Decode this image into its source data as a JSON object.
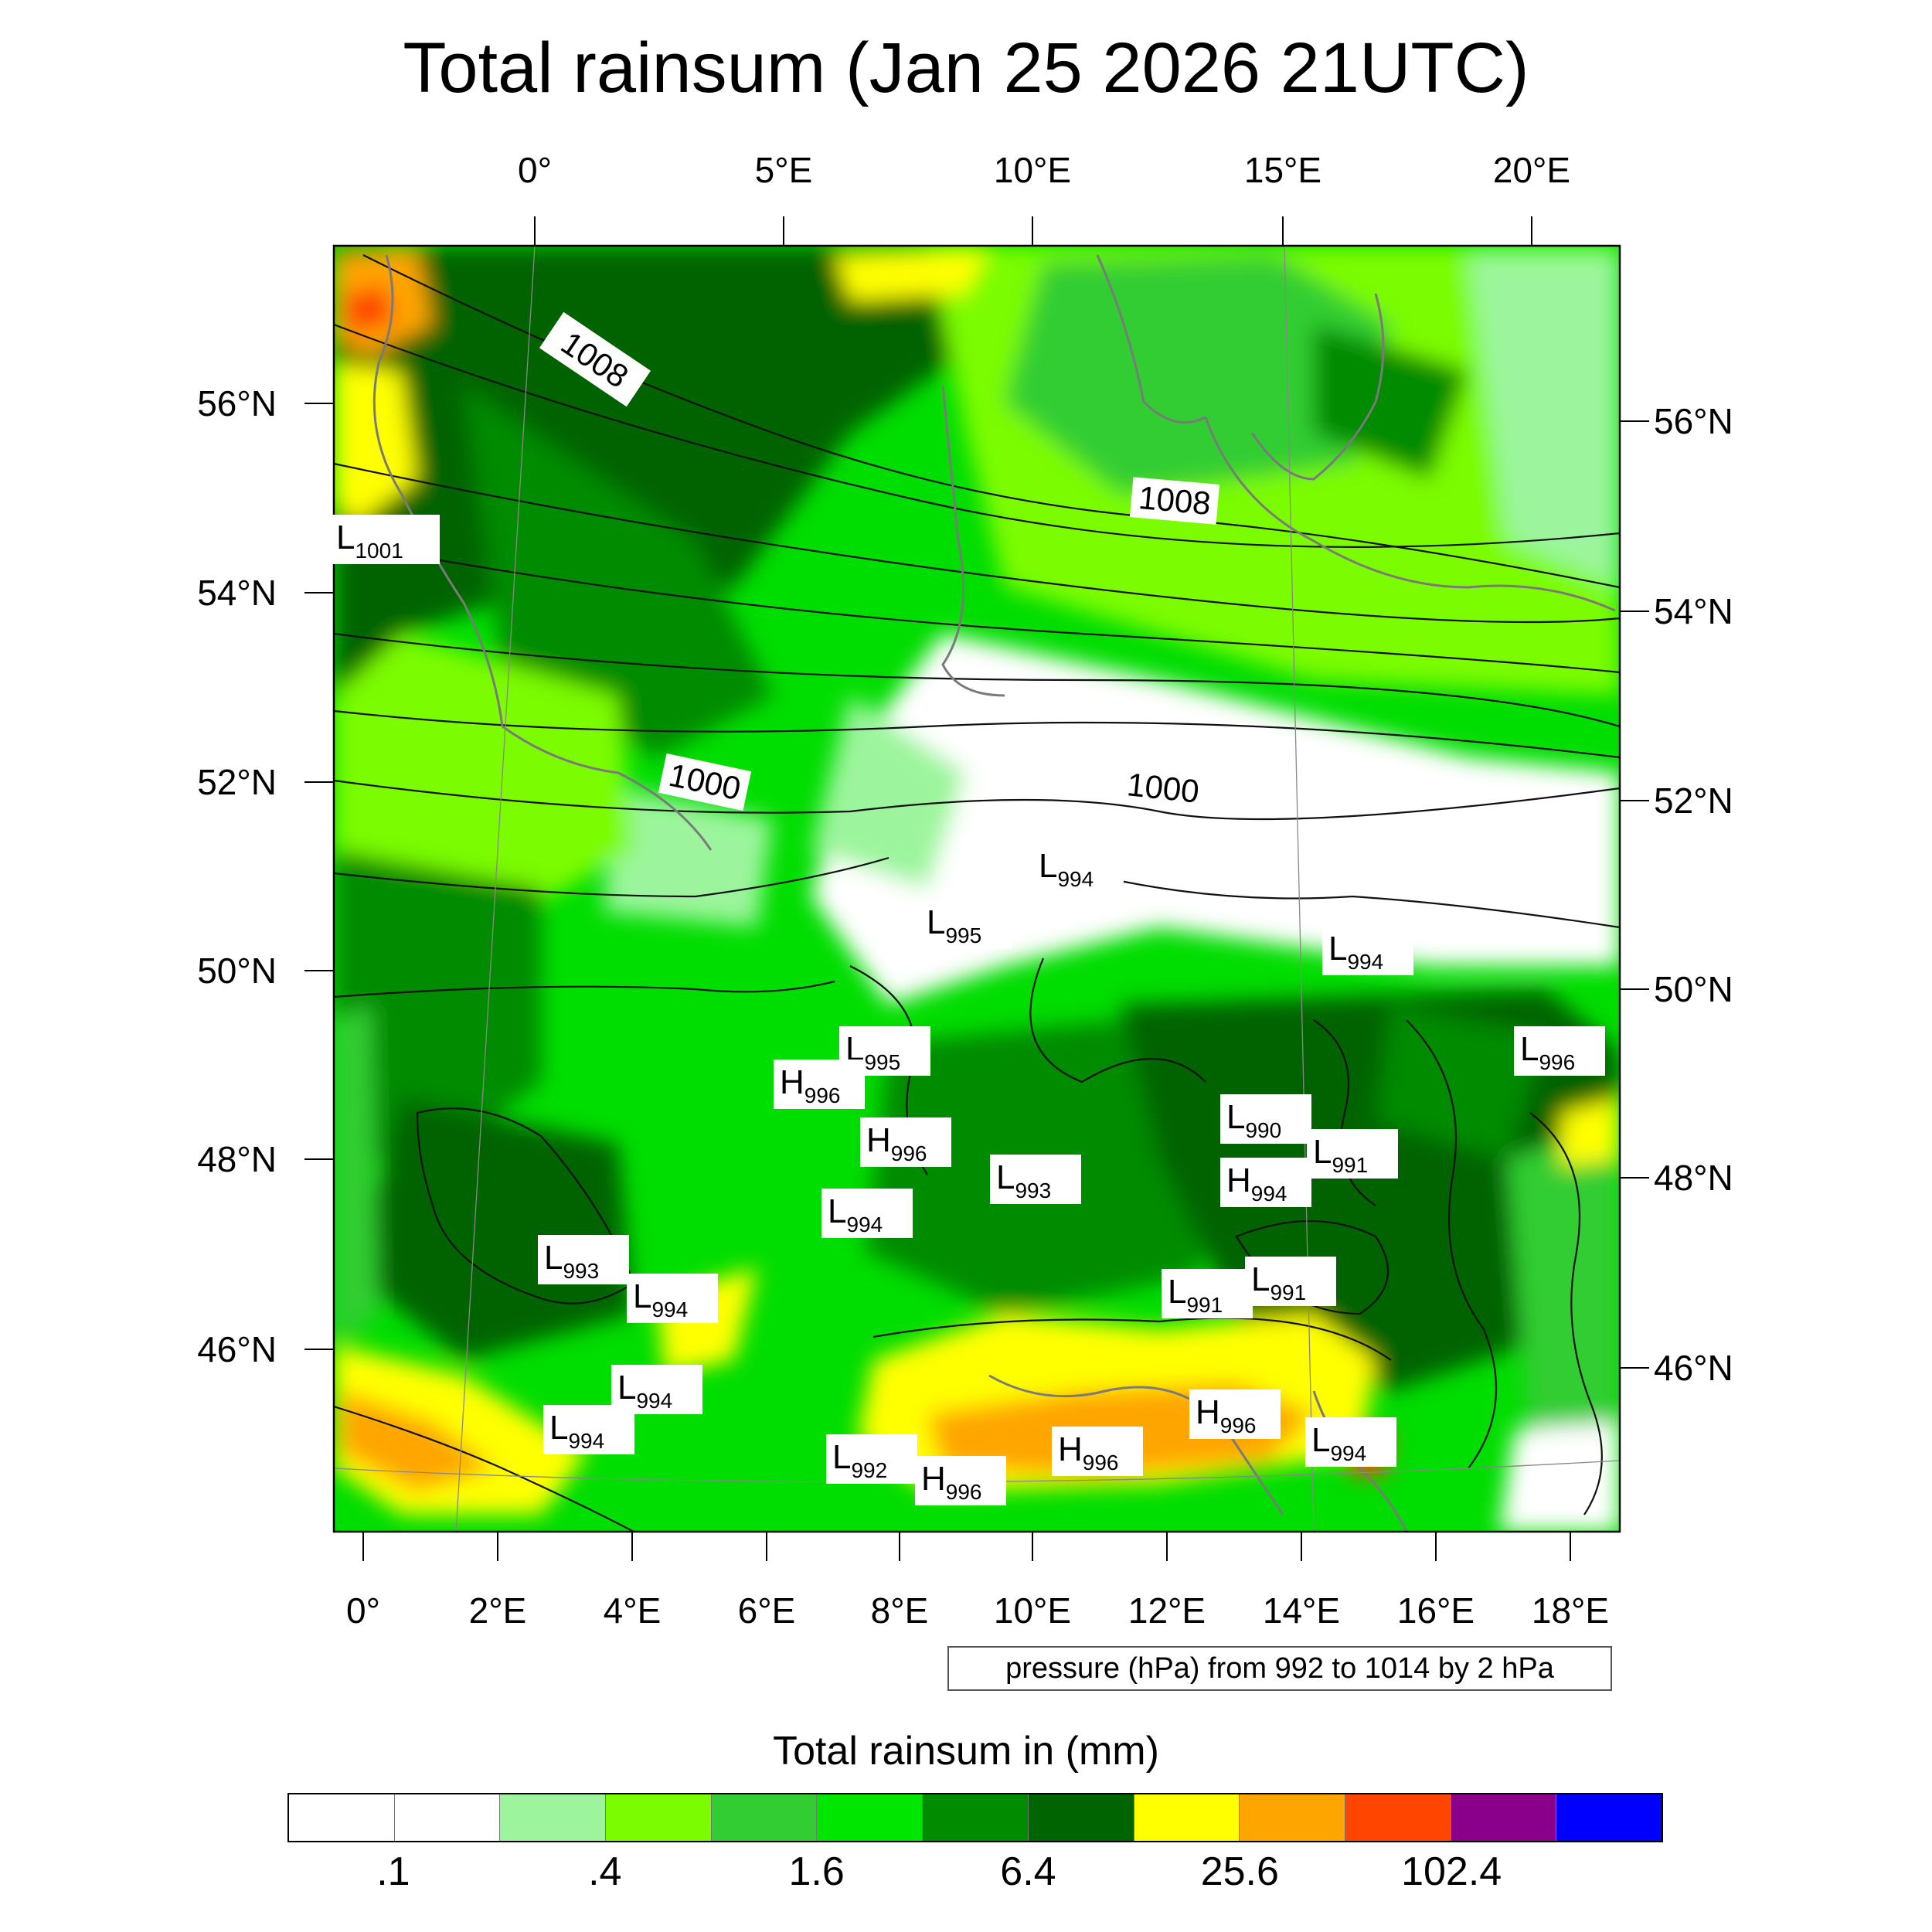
{
  "title": "Total rainsum (Jan 25 2026 21UTC)",
  "top_lon_labels": [
    "0°",
    "5°E",
    "10°E",
    "15°E",
    "20°E"
  ],
  "bottom_lon_labels": [
    "0°",
    "2°E",
    "4°E",
    "6°E",
    "8°E",
    "10°E",
    "12°E",
    "14°E",
    "16°E",
    "18°E"
  ],
  "left_lat_labels": [
    "56°N",
    "54°N",
    "52°N",
    "50°N",
    "48°N",
    "46°N"
  ],
  "right_lat_labels": [
    "56°N",
    "54°N",
    "52°N",
    "50°N",
    "48°N",
    "46°N"
  ],
  "contour_labels": [
    "1008",
    "1008",
    "1000",
    "1000"
  ],
  "pressure_centers": [
    {
      "type": "L",
      "value": "1001"
    },
    {
      "type": "L",
      "value": "994"
    },
    {
      "type": "L",
      "value": "995"
    },
    {
      "type": "L",
      "value": "994"
    },
    {
      "type": "L",
      "value": "995"
    },
    {
      "type": "H",
      "value": "996"
    },
    {
      "type": "L",
      "value": "996"
    },
    {
      "type": "H",
      "value": "996"
    },
    {
      "type": "L",
      "value": "990"
    },
    {
      "type": "L",
      "value": "991"
    },
    {
      "type": "L",
      "value": "993"
    },
    {
      "type": "H",
      "value": "994"
    },
    {
      "type": "L",
      "value": "994"
    },
    {
      "type": "L",
      "value": "993"
    },
    {
      "type": "L",
      "value": "994"
    },
    {
      "type": "L",
      "value": "991"
    },
    {
      "type": "L",
      "value": "991"
    },
    {
      "type": "L",
      "value": "994"
    },
    {
      "type": "H",
      "value": "996"
    },
    {
      "type": "L",
      "value": "994"
    },
    {
      "type": "L",
      "value": "992"
    },
    {
      "type": "H",
      "value": "996"
    },
    {
      "type": "L",
      "value": "994"
    },
    {
      "type": "H",
      "value": "996"
    }
  ],
  "info_text": "pressure (hPa) from 992 to 1014 by 2 hPa",
  "colorbar": {
    "title": "Total rainsum in (mm)",
    "colors": [
      "#ffffff",
      "#ffffff",
      "#9cf59c",
      "#7cfc00",
      "#32cd32",
      "#00e600",
      "#008b00",
      "#006400",
      "#ffff00",
      "#ffa500",
      "#ff4500",
      "#8b008b",
      "#0000ff"
    ],
    "labels": [
      ".1",
      ".4",
      "1.6",
      "6.4",
      "25.6",
      "102.4"
    ]
  }
}
